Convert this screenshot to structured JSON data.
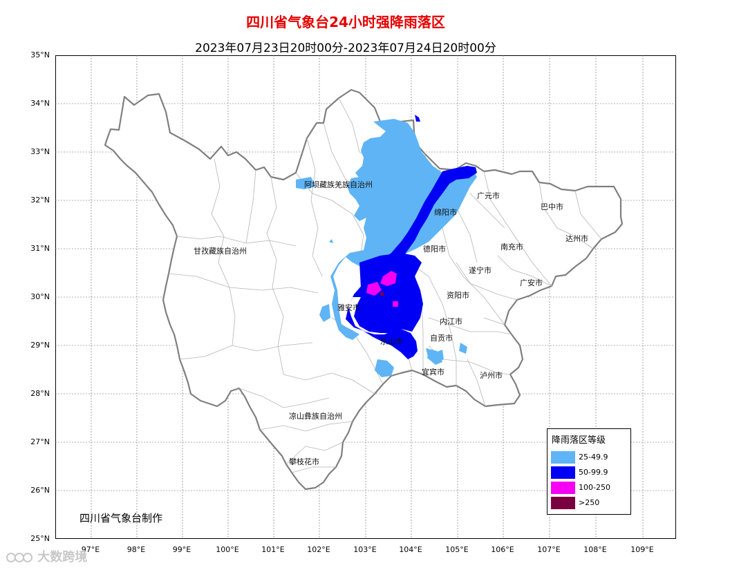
{
  "title": "四川省气象台24小时强降雨落区",
  "subtitle": "2023年07月23日20时00分-2023年07月24日20时00分",
  "lat_labels": [
    "35°N",
    "34°N",
    "33°N",
    "32°N",
    "31°N",
    "30°N",
    "29°N",
    "28°N",
    "27°N",
    "26°N",
    "25°N"
  ],
  "lon_labels": [
    "97°E",
    "98°E",
    "99°E",
    "100°E",
    "101°E",
    "102°E",
    "103°E",
    "104°E",
    "105°E",
    "106°E",
    "107°E",
    "108°E",
    "109°E"
  ],
  "regions": {
    "aba": "阿坝藏族羌族自治州",
    "ganzi": "甘孜藏族自治州",
    "liangshan": "凉山彝族自治州",
    "panzhihua": "攀枝花市",
    "guangyuan": "广元市",
    "bazhong": "巴中市",
    "mianyang": "绵阳市",
    "dazhou": "达州市",
    "nanchong": "南充市",
    "deyang": "德阳市",
    "suining": "遂宁市",
    "guangan": "广安市",
    "ziyang": "资阳市",
    "yaan": "雅安市",
    "neijiang": "内江市",
    "zigong": "自贡市",
    "leshan": "乐山市",
    "yibin": "宜宾市",
    "luzhou": "泸州市"
  },
  "legend": {
    "title": "降雨落区等级",
    "items": [
      {
        "label": "25-49.9",
        "color": "#5fb4f5"
      },
      {
        "label": "50-99.9",
        "color": "#0000f5"
      },
      {
        "label": "100-250",
        "color": "#f500f5"
      },
      {
        "label": ">250",
        "color": "#7a0040"
      }
    ]
  },
  "credit": "四川省气象台制作",
  "watermark": "大数跨境",
  "colors": {
    "title": "#e60000",
    "province_border": "#7f7f7f",
    "county_border": "#b4b4b4",
    "grid": "#666666"
  }
}
